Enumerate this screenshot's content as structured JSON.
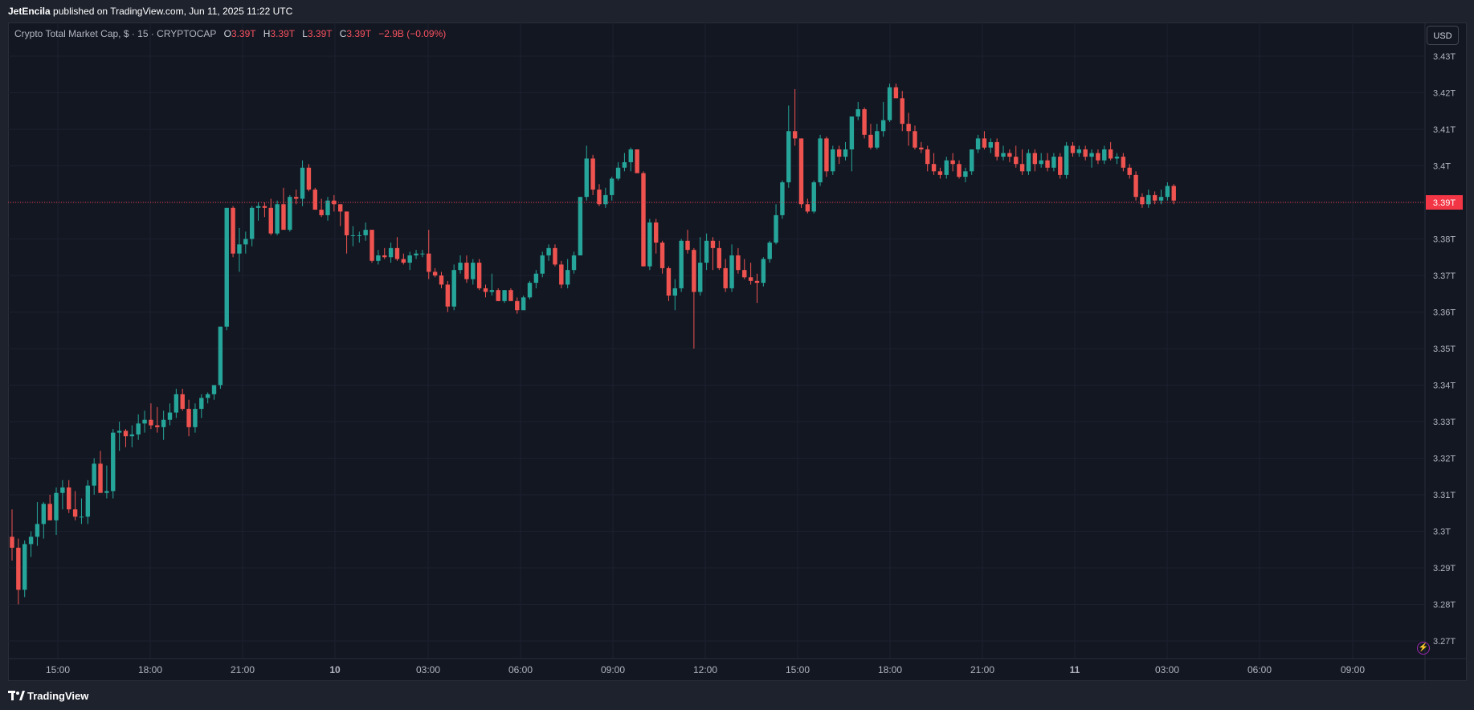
{
  "header": {
    "author": "JetEncila",
    "published_text": "published on TradingView.com, Jun 11, 2025 11:22 UTC"
  },
  "legend": {
    "symbol": "Crypto Total Market Cap, $ · 15 · CRYPTOCAP",
    "open_label": "O",
    "open_value": "3.39T",
    "high_label": "H",
    "high_value": "3.39T",
    "low_label": "L",
    "low_value": "3.39T",
    "close_label": "C",
    "close_value": "3.39T",
    "change": "−2.9B (−0.09%)"
  },
  "currency_button": "USD",
  "footer": {
    "brand": "TradingView"
  },
  "icons": {
    "logo": "tradingview-logo-icon",
    "alert": "lightning-icon"
  },
  "colors": {
    "background": "#131722",
    "up": "#26a69a",
    "down": "#ef5350",
    "grid": "#1f2330",
    "last_price": "#f23645"
  },
  "chart_data": {
    "type": "candlestick",
    "interval": "15",
    "unit": "T",
    "y_ticks": [
      "3.43T",
      "3.42T",
      "3.41T",
      "3.4T",
      "3.39T",
      "3.38T",
      "3.37T",
      "3.36T",
      "3.35T",
      "3.34T",
      "3.33T",
      "3.32T",
      "3.31T",
      "3.3T",
      "3.29T",
      "3.28T",
      "3.27T"
    ],
    "ylim": [
      3.265,
      3.436
    ],
    "x_ticks": [
      "15:00",
      "18:00",
      "21:00",
      "10",
      "03:00",
      "06:00",
      "09:00",
      "12:00",
      "15:00",
      "18:00",
      "21:00",
      "11",
      "03:00",
      "06:00",
      "09:00"
    ],
    "last_price": 3.39,
    "last_price_label": "3.39T",
    "candles": [
      [
        3.2985,
        3.306,
        3.292,
        3.2955
      ],
      [
        3.2955,
        3.298,
        3.28,
        3.284
      ],
      [
        3.284,
        3.2975,
        3.282,
        3.2965
      ],
      [
        3.2965,
        3.3,
        3.293,
        3.2985
      ],
      [
        3.2985,
        3.308,
        3.296,
        3.302
      ],
      [
        3.302,
        3.308,
        3.298,
        3.3075
      ],
      [
        3.3075,
        3.31,
        3.303,
        3.303
      ],
      [
        3.303,
        3.312,
        3.299,
        3.3105
      ],
      [
        3.3105,
        3.314,
        3.306,
        3.312
      ],
      [
        3.312,
        3.314,
        3.305,
        3.306
      ],
      [
        3.306,
        3.311,
        3.303,
        3.304
      ],
      [
        3.304,
        3.309,
        3.302,
        3.304
      ],
      [
        3.304,
        3.314,
        3.302,
        3.3125
      ],
      [
        3.3125,
        3.32,
        3.31,
        3.3185
      ],
      [
        3.3185,
        3.322,
        3.312,
        3.3105
      ],
      [
        3.3105,
        3.318,
        3.309,
        3.311
      ],
      [
        3.311,
        3.328,
        3.309,
        3.327
      ],
      [
        3.327,
        3.33,
        3.322,
        3.3275
      ],
      [
        3.3275,
        3.328,
        3.323,
        3.326
      ],
      [
        3.326,
        3.329,
        3.323,
        3.3265
      ],
      [
        3.3265,
        3.332,
        3.325,
        3.3295
      ],
      [
        3.3295,
        3.333,
        3.327,
        3.3305
      ],
      [
        3.3305,
        3.335,
        3.328,
        3.329
      ],
      [
        3.329,
        3.334,
        3.327,
        3.3285
      ],
      [
        3.3285,
        3.333,
        3.325,
        3.3305
      ],
      [
        3.3305,
        3.335,
        3.329,
        3.3325
      ],
      [
        3.3325,
        3.339,
        3.331,
        3.3375
      ],
      [
        3.3375,
        3.339,
        3.333,
        3.3335
      ],
      [
        3.3335,
        3.336,
        3.326,
        3.3285
      ],
      [
        3.3285,
        3.335,
        3.327,
        3.3335
      ],
      [
        3.3335,
        3.3375,
        3.331,
        3.3365
      ],
      [
        3.3365,
        3.338,
        3.335,
        3.3375
      ],
      [
        3.3375,
        3.34,
        3.336,
        3.34
      ],
      [
        3.34,
        3.356,
        3.339,
        3.356
      ],
      [
        3.356,
        3.3885,
        3.355,
        3.3885
      ],
      [
        3.3885,
        3.389,
        3.375,
        3.376
      ],
      [
        3.376,
        3.383,
        3.371,
        3.3785
      ],
      [
        3.3785,
        3.382,
        3.376,
        3.38
      ],
      [
        3.38,
        3.389,
        3.378,
        3.3885
      ],
      [
        3.3885,
        3.39,
        3.385,
        3.389
      ],
      [
        3.389,
        3.39,
        3.386,
        3.3885
      ],
      [
        3.3885,
        3.391,
        3.381,
        3.3815
      ],
      [
        3.3815,
        3.3905,
        3.381,
        3.3895
      ],
      [
        3.3895,
        3.394,
        3.384,
        3.3825
      ],
      [
        3.3825,
        3.392,
        3.382,
        3.3915
      ],
      [
        3.3915,
        3.3935,
        3.3895,
        3.391
      ],
      [
        3.391,
        3.4015,
        3.389,
        3.3995
      ],
      [
        3.3995,
        3.4005,
        3.393,
        3.3935
      ],
      [
        3.3935,
        3.394,
        3.388,
        3.388
      ],
      [
        3.388,
        3.391,
        3.386,
        3.3865
      ],
      [
        3.3865,
        3.3915,
        3.385,
        3.3905
      ],
      [
        3.3905,
        3.392,
        3.3875,
        3.3895
      ],
      [
        3.3895,
        3.3895,
        3.3835,
        3.3875
      ],
      [
        3.3875,
        3.3875,
        3.376,
        3.381
      ],
      [
        3.381,
        3.3835,
        3.378,
        3.381
      ],
      [
        3.381,
        3.382,
        3.379,
        3.381
      ],
      [
        3.381,
        3.3845,
        3.3795,
        3.3825
      ],
      [
        3.3825,
        3.3825,
        3.3735,
        3.374
      ],
      [
        3.374,
        3.377,
        3.373,
        3.3755
      ],
      [
        3.3755,
        3.3775,
        3.3745,
        3.375
      ],
      [
        3.375,
        3.379,
        3.3735,
        3.3775
      ],
      [
        3.3775,
        3.3805,
        3.374,
        3.3745
      ],
      [
        3.3745,
        3.376,
        3.373,
        3.3735
      ],
      [
        3.3735,
        3.3765,
        3.3715,
        3.3755
      ],
      [
        3.3755,
        3.377,
        3.3745,
        3.376
      ],
      [
        3.376,
        3.377,
        3.375,
        3.376
      ],
      [
        3.376,
        3.3825,
        3.369,
        3.371
      ],
      [
        3.371,
        3.372,
        3.3695,
        3.37
      ],
      [
        3.37,
        3.371,
        3.3665,
        3.3675
      ],
      [
        3.3675,
        3.3685,
        3.36,
        3.3615
      ],
      [
        3.3615,
        3.373,
        3.3605,
        3.3715
      ],
      [
        3.3715,
        3.3755,
        3.3705,
        3.3735
      ],
      [
        3.3735,
        3.3755,
        3.368,
        3.369
      ],
      [
        3.369,
        3.3745,
        3.3675,
        3.3735
      ],
      [
        3.3735,
        3.3745,
        3.366,
        3.3665
      ],
      [
        3.3665,
        3.3675,
        3.364,
        3.3655
      ],
      [
        3.3655,
        3.3705,
        3.3645,
        3.366
      ],
      [
        3.366,
        3.3665,
        3.363,
        3.363
      ],
      [
        3.363,
        3.366,
        3.3625,
        3.366
      ],
      [
        3.366,
        3.3665,
        3.3635,
        3.363
      ],
      [
        3.363,
        3.364,
        3.3595,
        3.3605
      ],
      [
        3.3605,
        3.3645,
        3.3605,
        3.364
      ],
      [
        3.364,
        3.3685,
        3.3635,
        3.368
      ],
      [
        3.368,
        3.3715,
        3.3665,
        3.3705
      ],
      [
        3.3705,
        3.3765,
        3.3695,
        3.3755
      ],
      [
        3.3755,
        3.3785,
        3.374,
        3.3775
      ],
      [
        3.3775,
        3.3785,
        3.3725,
        3.373
      ],
      [
        3.373,
        3.374,
        3.3665,
        3.3675
      ],
      [
        3.3675,
        3.3745,
        3.3665,
        3.3715
      ],
      [
        3.3715,
        3.3765,
        3.3705,
        3.3755
      ],
      [
        3.3755,
        3.3915,
        3.3755,
        3.3915
      ],
      [
        3.3915,
        3.4055,
        3.3905,
        3.402
      ],
      [
        3.402,
        3.403,
        3.392,
        3.3935
      ],
      [
        3.3935,
        3.395,
        3.389,
        3.3895
      ],
      [
        3.3895,
        3.394,
        3.3885,
        3.392
      ],
      [
        3.392,
        3.397,
        3.3905,
        3.3965
      ],
      [
        3.3965,
        3.401,
        3.396,
        3.3995
      ],
      [
        3.3995,
        3.4035,
        3.3985,
        3.401
      ],
      [
        3.401,
        3.405,
        3.3985,
        3.4045
      ],
      [
        3.4045,
        3.4045,
        3.3985,
        3.398
      ],
      [
        3.398,
        3.3985,
        3.3725,
        3.3725
      ],
      [
        3.3725,
        3.3855,
        3.3715,
        3.3845
      ],
      [
        3.3845,
        3.3855,
        3.376,
        3.379
      ],
      [
        3.379,
        3.3795,
        3.3705,
        3.372
      ],
      [
        3.372,
        3.3725,
        3.363,
        3.3645
      ],
      [
        3.3645,
        3.369,
        3.3605,
        3.3665
      ],
      [
        3.3665,
        3.38,
        3.3655,
        3.3795
      ],
      [
        3.3795,
        3.3825,
        3.376,
        3.377
      ],
      [
        3.377,
        3.3775,
        3.35,
        3.3655
      ],
      [
        3.3655,
        3.3805,
        3.3645,
        3.3735
      ],
      [
        3.3735,
        3.3815,
        3.3715,
        3.3795
      ],
      [
        3.3795,
        3.3805,
        3.3715,
        3.3775
      ],
      [
        3.3775,
        3.3795,
        3.3715,
        3.372
      ],
      [
        3.372,
        3.3745,
        3.3655,
        3.3665
      ],
      [
        3.3665,
        3.3785,
        3.3655,
        3.3755
      ],
      [
        3.3755,
        3.3775,
        3.3705,
        3.3715
      ],
      [
        3.3715,
        3.3745,
        3.369,
        3.3695
      ],
      [
        3.3695,
        3.3735,
        3.3675,
        3.3685
      ],
      [
        3.3685,
        3.3705,
        3.3625,
        3.368
      ],
      [
        3.368,
        3.375,
        3.367,
        3.3745
      ],
      [
        3.3745,
        3.3795,
        3.3735,
        3.379
      ],
      [
        3.379,
        3.3895,
        3.3785,
        3.3865
      ],
      [
        3.3865,
        3.396,
        3.3855,
        3.3955
      ],
      [
        3.3955,
        3.4165,
        3.394,
        3.4095
      ],
      [
        3.4095,
        3.421,
        3.4055,
        3.4075
      ],
      [
        3.4075,
        3.4075,
        3.3885,
        3.3895
      ],
      [
        3.3895,
        3.391,
        3.387,
        3.3875
      ],
      [
        3.3875,
        3.396,
        3.387,
        3.3955
      ],
      [
        3.3955,
        3.4085,
        3.3945,
        3.4075
      ],
      [
        3.4075,
        3.408,
        3.397,
        3.3985
      ],
      [
        3.3985,
        3.4055,
        3.3975,
        3.4045
      ],
      [
        3.4045,
        3.4055,
        3.4005,
        3.4025
      ],
      [
        3.4025,
        3.4065,
        3.4015,
        3.4045
      ],
      [
        3.4045,
        3.4135,
        3.3985,
        3.4135
      ],
      [
        3.4135,
        3.4175,
        3.4125,
        3.4155
      ],
      [
        3.4155,
        3.416,
        3.4075,
        3.4085
      ],
      [
        3.4085,
        3.4115,
        3.4045,
        3.405
      ],
      [
        3.405,
        3.4115,
        3.4045,
        3.4095
      ],
      [
        3.4095,
        3.4175,
        3.408,
        3.4125
      ],
      [
        3.4125,
        3.4225,
        3.412,
        3.4215
      ],
      [
        3.4215,
        3.4225,
        3.4185,
        3.4185
      ],
      [
        3.4185,
        3.4205,
        3.4095,
        3.4115
      ],
      [
        3.4115,
        3.4145,
        3.4055,
        3.4095
      ],
      [
        3.4095,
        3.411,
        3.4045,
        3.405
      ],
      [
        3.405,
        3.4065,
        3.4035,
        3.4045
      ],
      [
        3.4045,
        3.4055,
        3.3985,
        3.4005
      ],
      [
        3.4005,
        3.4035,
        3.3975,
        3.3985
      ],
      [
        3.3985,
        3.3995,
        3.3965,
        3.3975
      ],
      [
        3.3975,
        3.4025,
        3.3965,
        3.4015
      ],
      [
        3.4015,
        3.4035,
        3.3985,
        3.4005
      ],
      [
        3.4005,
        3.4015,
        3.3965,
        3.397
      ],
      [
        3.397,
        3.3995,
        3.3955,
        3.3985
      ],
      [
        3.3985,
        3.4045,
        3.3975,
        3.4045
      ],
      [
        3.4045,
        3.4085,
        3.4035,
        3.4075
      ],
      [
        3.4075,
        3.4095,
        3.4045,
        3.405
      ],
      [
        3.405,
        3.4075,
        3.4035,
        3.4065
      ],
      [
        3.4065,
        3.4075,
        3.4015,
        3.4025
      ],
      [
        3.4025,
        3.4055,
        3.4015,
        3.4035
      ],
      [
        3.4035,
        3.4045,
        3.401,
        3.4025
      ],
      [
        3.4025,
        3.4055,
        3.3995,
        3.4005
      ],
      [
        3.4005,
        3.4045,
        3.3975,
        3.3985
      ],
      [
        3.3985,
        3.4045,
        3.3975,
        3.4035
      ],
      [
        3.4035,
        3.4045,
        3.3985,
        3.4005
      ],
      [
        3.4005,
        3.4035,
        3.3995,
        3.4015
      ],
      [
        3.4015,
        3.4035,
        3.3985,
        3.3995
      ],
      [
        3.3995,
        3.4035,
        3.3985,
        3.4025
      ],
      [
        3.4025,
        3.4035,
        3.3965,
        3.3975
      ],
      [
        3.3975,
        3.4065,
        3.3965,
        3.4055
      ],
      [
        3.4055,
        3.4065,
        3.4025,
        3.4035
      ],
      [
        3.4035,
        3.4055,
        3.4025,
        3.4045
      ],
      [
        3.4045,
        3.4055,
        3.4015,
        3.4025
      ],
      [
        3.4025,
        3.4045,
        3.3995,
        3.4035
      ],
      [
        3.4035,
        3.4045,
        3.4005,
        3.4015
      ],
      [
        3.4015,
        3.4055,
        3.4005,
        3.4045
      ],
      [
        3.4045,
        3.4065,
        3.4015,
        3.402
      ],
      [
        3.402,
        3.4035,
        3.4005,
        3.4025
      ],
      [
        3.4025,
        3.4035,
        3.3985,
        3.3995
      ],
      [
        3.3995,
        3.4005,
        3.3965,
        3.3975
      ],
      [
        3.3975,
        3.3985,
        3.3905,
        3.3915
      ],
      [
        3.3915,
        3.3925,
        3.3885,
        3.3895
      ],
      [
        3.3895,
        3.3935,
        3.3885,
        3.392
      ],
      [
        3.392,
        3.393,
        3.3895,
        3.3905
      ],
      [
        3.3905,
        3.3935,
        3.3895,
        3.3915
      ],
      [
        3.3915,
        3.3955,
        3.3905,
        3.3945
      ],
      [
        3.3945,
        3.395,
        3.3895,
        3.3905
      ]
    ]
  }
}
